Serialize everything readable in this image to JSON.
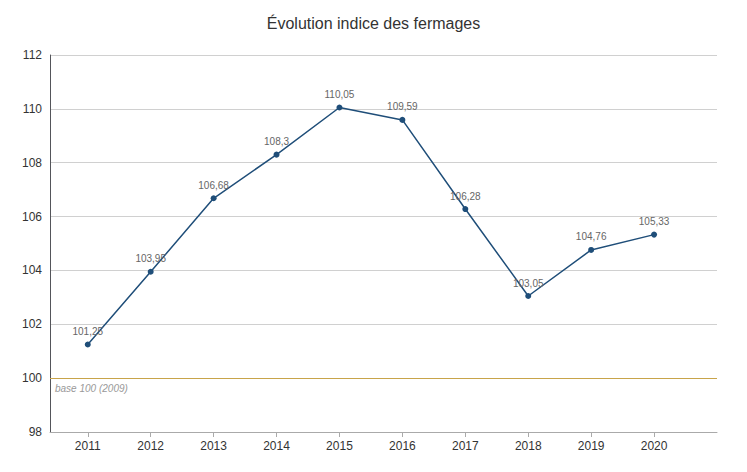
{
  "chart_data": {
    "type": "line",
    "title": "Évolution indice des fermages",
    "x": [
      2011,
      2012,
      2013,
      2014,
      2015,
      2016,
      2017,
      2018,
      2019,
      2020
    ],
    "values": [
      101.25,
      103.95,
      106.68,
      108.3,
      110.05,
      109.59,
      106.28,
      103.05,
      104.76,
      105.33
    ],
    "value_labels": [
      "101,25",
      "103,95",
      "106,68",
      "108,3",
      "110,05",
      "109,59",
      "106,28",
      "103,05",
      "104,76",
      "105,33"
    ],
    "color": "#1f4e79",
    "marker": "circle",
    "data_labels": true,
    "xlim": [
      2010.4,
      2021.0
    ],
    "xticks": [
      2011,
      2012,
      2013,
      2014,
      2015,
      2016,
      2017,
      2018,
      2019,
      2020
    ],
    "ylim": [
      98,
      112
    ],
    "yticks": [
      98,
      100,
      102,
      104,
      106,
      108,
      110,
      112
    ],
    "grid": true,
    "annotations": [
      {
        "y": 100,
        "text": "base 100 (2009)",
        "color": "#c8a44a"
      }
    ]
  }
}
